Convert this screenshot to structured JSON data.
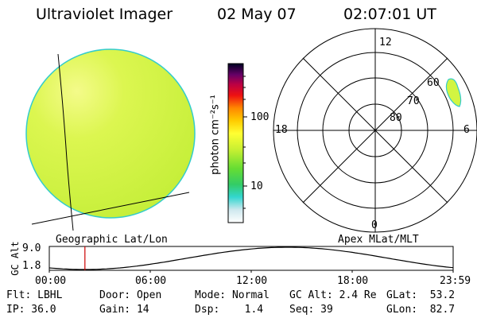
{
  "header": {
    "instrument": "Ultraviolet Imager",
    "date": "02 May 07",
    "time": "02:07:01 UT"
  },
  "colorbar": {
    "axis_label": "photon cm⁻²s⁻¹",
    "ticks": [
      "100",
      "10"
    ]
  },
  "images": {
    "geographic_label": "Geographic Lat/Lon",
    "apex_label": "Apex MLat/MLT"
  },
  "polar_plot": {
    "mlt_labels": {
      "top": "12",
      "left": "18",
      "right": "6",
      "bottom": "0"
    },
    "mlat_labels": [
      "60",
      "70",
      "80"
    ]
  },
  "altitude_plot": {
    "ylabel": "GC Alt",
    "y_ticks": [
      "9.0",
      "1.8"
    ],
    "x_ticks": [
      "00:00",
      "06:00",
      "12:00",
      "18:00",
      "23:59"
    ],
    "marker_time_hours": 2.117
  },
  "info": {
    "row1": {
      "flt": "Flt: LBHL",
      "door": "Door: Open",
      "mode": "Mode: Normal",
      "gc_alt": "GC Alt: 2.4 Re",
      "glat": "GLat:  53.2"
    },
    "row2": {
      "ip": "IP: 36.0",
      "gain": "Gain: 14",
      "dsp": "Dsp:    1.4",
      "seq": "Seq: 39",
      "glon": "GLon:  82.7"
    }
  },
  "colors": {
    "disk_fill": "#d2f542",
    "disk_edge": "#33cccc",
    "marker": "#cc0000"
  }
}
